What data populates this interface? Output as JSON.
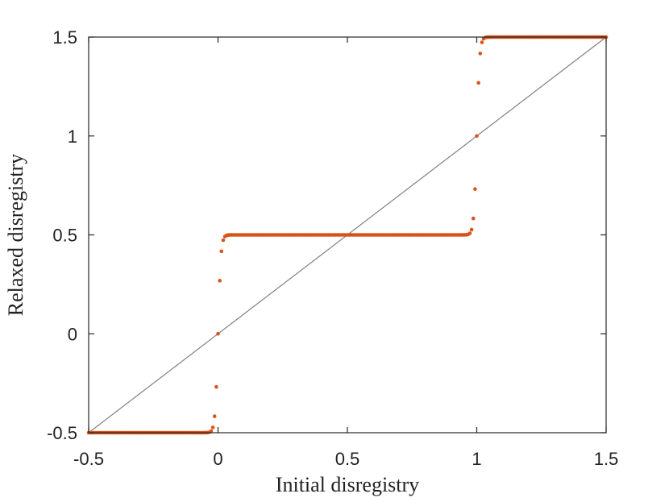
{
  "chart_data": {
    "type": "scatter",
    "xlabel": "Initial disregistry",
    "ylabel": "Relaxed disregistry",
    "xlim": [
      -0.5,
      1.5
    ],
    "ylim": [
      -0.5,
      1.5
    ],
    "x_ticks": [
      -0.5,
      0,
      0.5,
      1,
      1.5
    ],
    "y_ticks": [
      -0.5,
      0,
      0.5,
      1,
      1.5
    ],
    "x_tick_labels": [
      "-0.5",
      "0",
      "0.5",
      "1",
      "1.5"
    ],
    "y_tick_labels": [
      "-0.5",
      "0",
      "0.5",
      "1",
      "1.5"
    ],
    "grid": false,
    "legend": "none",
    "series": [
      {
        "kind": "markers",
        "color": "#d95319",
        "x_range": [
          -0.5,
          1.5
        ],
        "point_count": 301,
        "plateaus": [
          -0.5,
          0.5,
          1.5
        ],
        "transitions": [
          {
            "center": 0.0,
            "from": -0.5,
            "to": 0.5
          },
          {
            "center": 1.0,
            "from": 0.5,
            "to": 1.5
          }
        ]
      },
      {
        "kind": "line",
        "color": "#808080",
        "x": [
          -0.5,
          1.5
        ],
        "y": [
          -0.5,
          1.5
        ]
      }
    ]
  }
}
